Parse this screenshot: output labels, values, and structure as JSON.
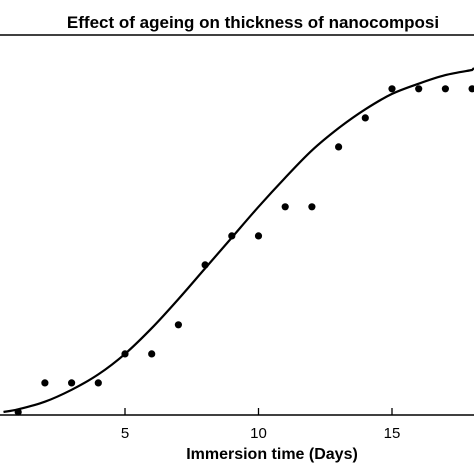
{
  "chart_data": {
    "type": "scatter",
    "title": "Effect of ageing on thickness of nanocomposi",
    "xlabel": "Immersion time (Days)",
    "ylabel": "",
    "xticks": [
      5,
      10,
      15
    ],
    "xlim": [
      0.45,
      18.0
    ],
    "ylim": [
      0,
      1
    ],
    "grid": false,
    "legend": "none",
    "series": [
      {
        "kind": "points",
        "color": "#000000",
        "x": [
          1,
          2,
          3,
          4,
          5,
          6,
          7,
          8,
          9,
          10,
          11,
          12,
          13,
          14,
          15,
          16,
          17,
          18
        ],
        "y": [
          0.0,
          0.085,
          0.085,
          0.085,
          0.17,
          0.17,
          0.255,
          0.43,
          0.515,
          0.515,
          0.6,
          0.6,
          0.775,
          0.86,
          0.945,
          0.945,
          0.945,
          0.945
        ]
      },
      {
        "kind": "fit-line",
        "color": "#000000",
        "x": [
          0.45,
          1,
          2,
          3,
          4,
          5,
          6,
          7,
          8,
          9,
          10,
          11,
          12,
          13,
          14,
          15,
          16,
          17,
          18
        ],
        "y": [
          0.0,
          0.008,
          0.03,
          0.065,
          0.11,
          0.17,
          0.245,
          0.33,
          0.42,
          0.51,
          0.6,
          0.685,
          0.765,
          0.83,
          0.885,
          0.93,
          0.96,
          0.985,
          1.0
        ]
      }
    ]
  }
}
